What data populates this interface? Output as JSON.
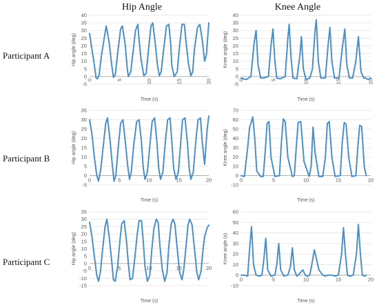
{
  "column_titles": [
    "Hip Angle",
    "Knee Angle"
  ],
  "row_labels": [
    "Participant A",
    "Participant B",
    "Participant C"
  ],
  "colors": {
    "line": "#4a8fc7",
    "grid": "#e3e3e3",
    "axis": "#999999"
  },
  "chart_data": [
    {
      "type": "line",
      "title": "",
      "xlabel": "Time (s)",
      "ylabel": "Hip angle (deg)",
      "xlim": [
        0,
        20
      ],
      "ylim": [
        -5,
        40
      ],
      "yticks": [
        -5,
        0,
        5,
        10,
        15,
        20,
        25,
        30,
        35,
        40
      ],
      "xticks": [
        0,
        5,
        10,
        15,
        20
      ],
      "x_tick_rotation": -90,
      "grid": true,
      "series": [
        {
          "x": [
            0.0,
            0.3,
            0.7,
            1.1,
            1.3,
            1.6,
            2.0,
            2.5,
            2.8,
            3.3,
            3.7,
            4.0,
            4.3,
            4.8,
            5.2,
            5.5,
            6.0,
            6.3,
            6.5,
            6.9,
            7.3,
            7.7,
            8.1,
            8.3,
            8.6,
            9.1,
            9.5,
            9.9,
            10.3,
            10.6,
            11.0,
            11.4,
            11.7,
            12.0,
            12.5,
            12.9,
            13.3,
            13.6,
            13.8,
            14.2,
            14.7,
            15.1,
            15.5,
            15.9,
            16.2,
            16.6,
            17.0,
            17.3,
            17.6,
            18.1,
            18.5,
            18.9,
            19.3,
            19.6,
            20.0
          ],
          "y": [
            28,
            20,
            10,
            -1,
            -1.5,
            1,
            14,
            26,
            33,
            22,
            8,
            -0.5,
            1,
            18,
            31,
            33,
            20,
            6,
            0,
            3,
            16,
            30,
            34,
            24,
            12,
            0.5,
            2,
            18,
            33,
            35,
            22,
            7,
            0.5,
            3,
            20,
            33,
            34,
            22,
            7,
            0,
            3,
            20,
            34,
            34,
            22,
            8,
            0.5,
            3,
            18,
            32,
            34,
            24,
            10,
            14,
            35
          ]
        }
      ]
    },
    {
      "type": "line",
      "title": "",
      "xlabel": "Time (s)",
      "ylabel": "Knee angle (deg)",
      "xlim": [
        0,
        20
      ],
      "ylim": [
        -5,
        40
      ],
      "yticks": [
        -5,
        0,
        5,
        10,
        15,
        20,
        25,
        30,
        35,
        40
      ],
      "xticks": [
        0,
        5,
        10,
        15,
        20
      ],
      "x_tick_rotation": -90,
      "grid": true,
      "series": [
        {
          "x": [
            0.0,
            0.8,
            1.5,
            2.0,
            2.3,
            2.6,
            3.0,
            3.5,
            4.2,
            4.6,
            4.9,
            5.2,
            5.5,
            6.0,
            6.8,
            7.2,
            7.4,
            7.7,
            8.0,
            8.6,
            9.1,
            9.3,
            9.6,
            10.0,
            10.6,
            11.0,
            11.4,
            11.6,
            11.9,
            12.3,
            13.0,
            13.4,
            13.7,
            14.0,
            14.4,
            15.1,
            15.6,
            16.0,
            16.3,
            16.7,
            17.2,
            17.7,
            18.1,
            18.5,
            18.9,
            19.2,
            19.6,
            20.0
          ],
          "y": [
            -1,
            -2,
            0,
            22,
            30,
            8,
            -1,
            -1,
            0,
            20,
            31,
            10,
            -1,
            -1.5,
            0,
            25,
            34,
            12,
            -1,
            -1.5,
            15,
            26,
            5,
            -2,
            -1,
            5,
            30,
            37,
            10,
            -1,
            -1,
            20,
            32,
            10,
            -1,
            -1,
            18,
            31,
            8,
            -1,
            -1,
            10,
            26,
            3,
            -1,
            -1,
            -2,
            -1
          ]
        }
      ]
    },
    {
      "type": "line",
      "title": "",
      "xlabel": "Time (s)",
      "ylabel": "Hip angle (deg)",
      "xlim": [
        0,
        20
      ],
      "ylim": [
        -5,
        35
      ],
      "yticks": [
        -5,
        0,
        5,
        10,
        15,
        20,
        25,
        30,
        35
      ],
      "xticks": [
        0,
        5,
        10,
        15,
        20
      ],
      "x_tick_rotation": 0,
      "grid": true,
      "series": [
        {
          "x": [
            0.0,
            0.4,
            0.8,
            1.2,
            1.5,
            1.9,
            2.3,
            2.7,
            3.0,
            3.4,
            3.8,
            4.1,
            4.4,
            4.8,
            5.2,
            5.6,
            6.0,
            6.4,
            6.7,
            7.0,
            7.4,
            7.9,
            8.3,
            8.7,
            9.0,
            9.3,
            9.7,
            10.1,
            10.5,
            10.9,
            11.3,
            11.6,
            11.9,
            12.3,
            12.7,
            13.1,
            13.5,
            13.8,
            14.1,
            14.5,
            14.9,
            15.3,
            15.6,
            16.0,
            16.4,
            16.7,
            17.0,
            17.4,
            17.8,
            18.2,
            18.6,
            18.9,
            19.3,
            19.7,
            20.0
          ],
          "y": [
            30,
            22,
            10,
            0,
            -3,
            4,
            16,
            28,
            31,
            20,
            6,
            -3,
            0,
            15,
            28,
            30,
            18,
            5,
            -2,
            2,
            16,
            29,
            30,
            18,
            4,
            -2,
            2,
            16,
            29,
            31,
            18,
            4,
            -2,
            2,
            18,
            30,
            31,
            18,
            4,
            -2,
            2,
            18,
            30,
            31,
            18,
            4,
            -2,
            2,
            18,
            30,
            31,
            18,
            6,
            24,
            32
          ]
        }
      ]
    },
    {
      "type": "line",
      "title": "",
      "xlabel": "Time (s)",
      "ylabel": "Knee angle (deg)",
      "xlim": [
        0,
        20
      ],
      "ylim": [
        -10,
        70
      ],
      "yticks": [
        -10,
        0,
        10,
        20,
        30,
        40,
        50,
        60,
        70
      ],
      "xticks": [
        0,
        5,
        10,
        15,
        20
      ],
      "x_tick_rotation": 0,
      "grid": true,
      "series": [
        {
          "x": [
            0.0,
            0.5,
            1.0,
            1.3,
            1.6,
            1.8,
            2.1,
            2.4,
            3.0,
            3.4,
            3.7,
            4.0,
            4.3,
            4.6,
            5.2,
            5.9,
            6.2,
            6.5,
            6.8,
            7.2,
            7.9,
            8.2,
            8.5,
            8.8,
            9.2,
            9.7,
            10.5,
            10.8,
            11.1,
            11.4,
            12.0,
            12.6,
            13.0,
            13.3,
            13.6,
            14.0,
            14.5,
            15.3,
            15.6,
            15.9,
            16.2,
            16.6,
            17.1,
            17.7,
            18.0,
            18.3,
            18.6,
            19.0,
            19.3
          ],
          "y": [
            0,
            -1,
            30,
            52,
            58,
            63,
            40,
            5,
            -1,
            -1,
            25,
            56,
            58,
            20,
            -1,
            0,
            35,
            61,
            58,
            20,
            -1,
            0,
            30,
            57,
            58,
            15,
            -1,
            10,
            52,
            25,
            -1,
            -1,
            20,
            56,
            58,
            20,
            -1,
            0,
            35,
            57,
            55,
            20,
            -1,
            0,
            30,
            54,
            53,
            10,
            0
          ]
        }
      ]
    },
    {
      "type": "line",
      "title": "",
      "xlabel": "Time (s)",
      "ylabel": "Hip angle (deg)",
      "xlim": [
        0,
        20
      ],
      "ylim": [
        -15,
        35
      ],
      "yticks": [
        -15,
        -10,
        -5,
        0,
        5,
        10,
        15,
        20,
        25,
        30,
        35
      ],
      "xticks": [
        0,
        5,
        10,
        15,
        20
      ],
      "x_tick_rotation": 0,
      "grid": true,
      "series": [
        {
          "x": [
            0.0,
            0.4,
            0.8,
            1.2,
            1.5,
            1.8,
            2.2,
            2.6,
            2.9,
            3.3,
            3.7,
            4.0,
            4.3,
            4.7,
            5.1,
            5.4,
            5.8,
            6.2,
            6.5,
            6.8,
            7.2,
            7.6,
            8.0,
            8.3,
            8.7,
            9.0,
            9.3,
            9.7,
            10.1,
            10.4,
            10.8,
            11.2,
            11.5,
            11.8,
            12.2,
            12.6,
            13.0,
            13.3,
            13.7,
            14.0,
            14.3,
            14.7,
            15.1,
            15.5,
            15.8,
            16.2,
            16.5,
            16.8,
            17.2,
            17.6,
            18.0,
            18.3,
            18.7,
            19.0,
            19.3,
            19.7,
            20.0
          ],
          "y": [
            28,
            18,
            5,
            -8,
            -12,
            -6,
            10,
            25,
            30,
            18,
            2,
            -11,
            -12,
            -2,
            16,
            27,
            29,
            15,
            0,
            -11,
            -10,
            4,
            20,
            29,
            29,
            15,
            -2,
            -12,
            -8,
            8,
            24,
            30,
            28,
            12,
            -4,
            -12,
            -6,
            12,
            27,
            30,
            27,
            10,
            -6,
            -11,
            -4,
            12,
            26,
            30,
            26,
            10,
            -6,
            -11,
            -5,
            8,
            18,
            24,
            26
          ]
        }
      ]
    },
    {
      "type": "line",
      "title": "",
      "xlabel": "Time (s)",
      "ylabel": "Knee angle (s)",
      "xlim": [
        0,
        20
      ],
      "ylim": [
        -10,
        60
      ],
      "yticks": [
        -10,
        0,
        10,
        20,
        30,
        40,
        50,
        60
      ],
      "xticks": [
        0,
        5,
        10,
        15,
        20
      ],
      "x_tick_rotation": 0,
      "grid": true,
      "series": [
        {
          "x": [
            0.0,
            0.5,
            1.0,
            1.3,
            1.6,
            1.9,
            2.3,
            2.8,
            3.2,
            3.5,
            3.8,
            4.1,
            4.6,
            5.2,
            5.5,
            5.8,
            6.1,
            6.6,
            7.2,
            7.6,
            7.9,
            8.2,
            8.6,
            8.8,
            9.1,
            9.5,
            9.9,
            10.2,
            10.6,
            10.9,
            11.3,
            12.0,
            12.6,
            13.0,
            13.4,
            13.7,
            14.0,
            14.5,
            15.0,
            15.5,
            15.8,
            16.1,
            16.4,
            16.8,
            17.3,
            17.8,
            18.1,
            18.4,
            18.7,
            19.1,
            19.3
          ],
          "y": [
            0,
            0,
            -1,
            25,
            46,
            10,
            0,
            -1,
            0,
            15,
            35,
            5,
            -1,
            0,
            10,
            30,
            5,
            -1,
            0,
            8,
            26,
            5,
            -1,
            0,
            2,
            5,
            0,
            -1,
            0,
            10,
            24,
            5,
            0,
            -1,
            0,
            0,
            0,
            -1,
            0,
            20,
            45,
            20,
            0,
            -1,
            0,
            20,
            48,
            20,
            0,
            -1,
            0
          ]
        }
      ]
    }
  ]
}
